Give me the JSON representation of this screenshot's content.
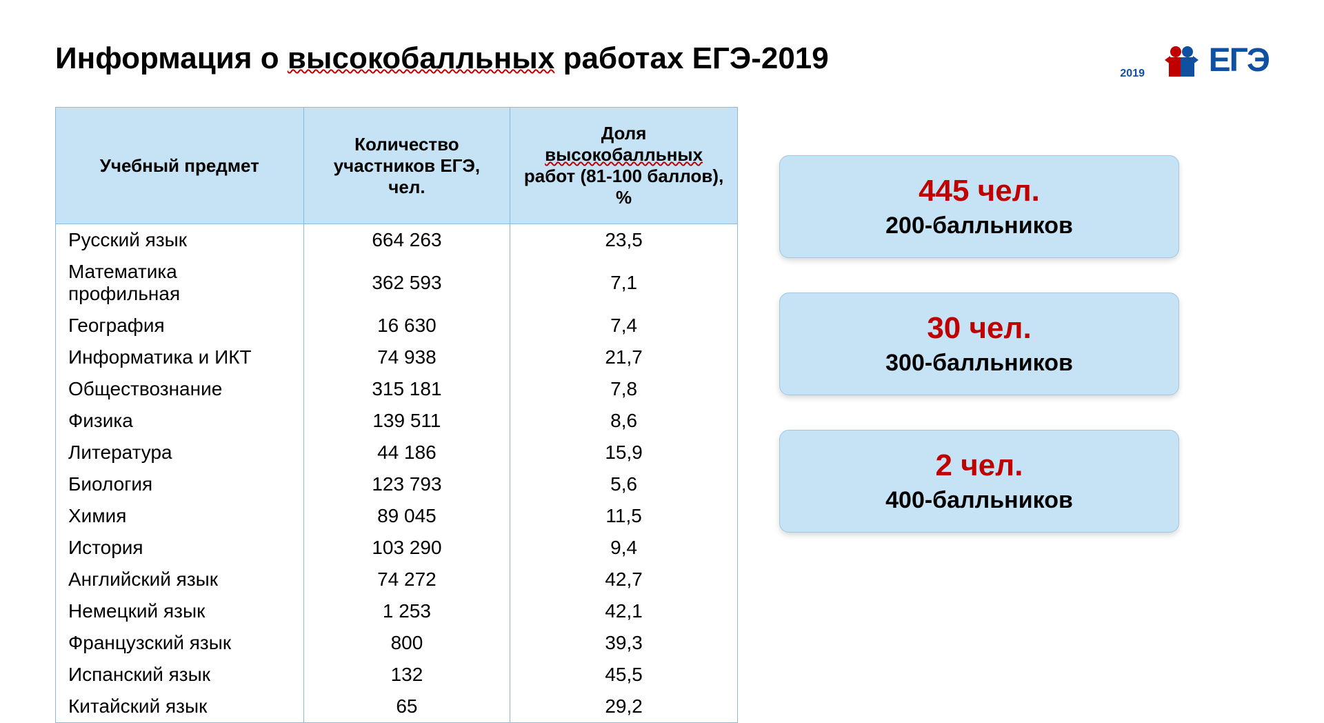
{
  "title_prefix": "Информация о ",
  "title_underline": "высокобалльных",
  "title_suffix": " работах ЕГЭ-2019",
  "logo": {
    "text": "ЕГЭ",
    "year": "2019"
  },
  "table": {
    "columns": [
      {
        "label": "Учебный предмет",
        "underline": false
      },
      {
        "label_prefix": "Количество",
        "label_line2": "участников ЕГЭ, чел."
      },
      {
        "label_prefix": "Доля ",
        "label_underline": "высокобалльных",
        "label_line2": "работ (81-100 баллов), %"
      }
    ],
    "rows": [
      [
        "Русский язык",
        "664 263",
        "23,5"
      ],
      [
        "Математика профильная",
        "362 593",
        "7,1"
      ],
      [
        "География",
        "16 630",
        "7,4"
      ],
      [
        "Информатика и ИКТ",
        "74 938",
        "21,7"
      ],
      [
        "Обществознание",
        "315 181",
        "7,8"
      ],
      [
        "Физика",
        "139 511",
        "8,6"
      ],
      [
        "Литература",
        "44 186",
        "15,9"
      ],
      [
        "Биология",
        "123 793",
        "5,6"
      ],
      [
        "Химия",
        "89 045",
        "11,5"
      ],
      [
        "История",
        "103 290",
        "9,4"
      ],
      [
        "Английский язык",
        "74 272",
        "42,7"
      ],
      [
        "Немецкий язык",
        "1 253",
        "42,1"
      ],
      [
        "Французский язык",
        "800",
        "39,3"
      ],
      [
        "Испанский язык",
        "132",
        "45,5"
      ],
      [
        "Китайский язык",
        "65",
        "29,2"
      ]
    ]
  },
  "cards": [
    {
      "num": "445 чел.",
      "label": "200-балльников"
    },
    {
      "num": "30 чел.",
      "label": "300-балльников"
    },
    {
      "num": "2 чел.",
      "label": "400-балльников"
    }
  ],
  "colors": {
    "header_bg": "#c5e3f5",
    "border": "#8db8d8",
    "card_bg": "#c5e3f5",
    "accent_red": "#c00000",
    "logo_blue": "#1050a0"
  }
}
